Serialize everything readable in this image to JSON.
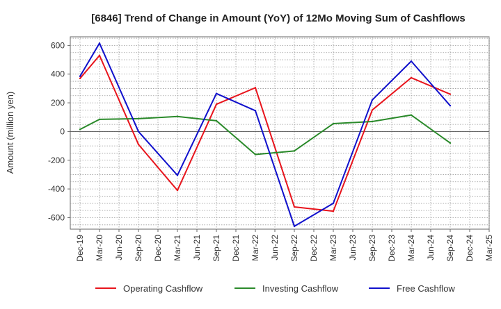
{
  "chart_data": {
    "type": "line",
    "title": "[6846]  Trend of Change in Amount (YoY) of 12Mo Moving Sum of Cashflows",
    "xlabel": "",
    "ylabel": "Amount (million yen)",
    "ylim": [
      -680,
      660
    ],
    "yticks": [
      600,
      400,
      200,
      0,
      -200,
      -400,
      -600
    ],
    "ytick_labels": [
      "600",
      "400",
      "200",
      "0",
      "-200",
      "-400",
      "-600"
    ],
    "categories": [
      "Dec-19",
      "Mar-20",
      "Jun-20",
      "Sep-20",
      "Dec-20",
      "Mar-21",
      "Jun-21",
      "Sep-21",
      "Dec-21",
      "Mar-22",
      "Jun-22",
      "Sep-22",
      "Dec-22",
      "Mar-23",
      "Jun-23",
      "Sep-23",
      "Dec-23",
      "Mar-24",
      "Jun-24",
      "Sep-24",
      "Dec-24",
      "Mar-25"
    ],
    "grid": true,
    "legend_position": "bottom",
    "series": [
      {
        "name": "Operating Cashflow",
        "color": "#e8141c",
        "points": [
          [
            0,
            370
          ],
          [
            1,
            530
          ],
          [
            3,
            -90
          ],
          [
            5,
            -410
          ],
          [
            7,
            190
          ],
          [
            9,
            305
          ],
          [
            11,
            -525
          ],
          [
            13,
            -555
          ],
          [
            15,
            150
          ],
          [
            17,
            375
          ],
          [
            19,
            260
          ]
        ]
      },
      {
        "name": "Investing Cashflow",
        "color": "#2a8a2a",
        "points": [
          [
            0,
            15
          ],
          [
            1,
            85
          ],
          [
            3,
            90
          ],
          [
            5,
            105
          ],
          [
            7,
            75
          ],
          [
            9,
            -160
          ],
          [
            11,
            -135
          ],
          [
            13,
            55
          ],
          [
            15,
            70
          ],
          [
            17,
            115
          ],
          [
            19,
            -80
          ]
        ]
      },
      {
        "name": "Free Cashflow",
        "color": "#1010cc",
        "points": [
          [
            0,
            385
          ],
          [
            1,
            615
          ],
          [
            3,
            0
          ],
          [
            5,
            -305
          ],
          [
            7,
            265
          ],
          [
            9,
            145
          ],
          [
            11,
            -660
          ],
          [
            13,
            -500
          ],
          [
            15,
            220
          ],
          [
            17,
            490
          ],
          [
            19,
            180
          ]
        ]
      }
    ]
  }
}
